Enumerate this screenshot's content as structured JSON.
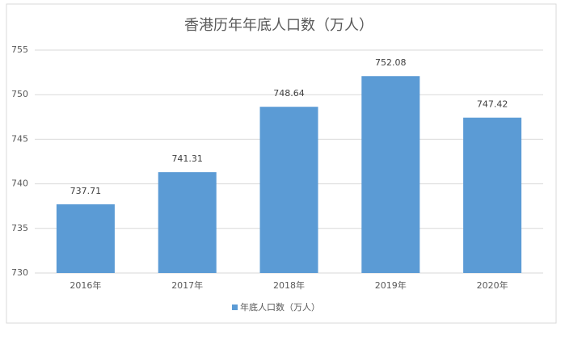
{
  "chart_data": {
    "type": "bar",
    "title": "香港历年年底人口数（万人）",
    "categories": [
      "2016年",
      "2017年",
      "2018年",
      "2019年",
      "2020年"
    ],
    "series": [
      {
        "name": "年底人口数（万人）",
        "color": "#5b9bd5",
        "values": [
          737.71,
          741.31,
          748.64,
          752.08,
          747.42
        ]
      }
    ],
    "ylim": [
      730,
      755
    ],
    "yticks": [
      730,
      735,
      740,
      745,
      750,
      755
    ],
    "grid": true,
    "legend": "bottom"
  }
}
